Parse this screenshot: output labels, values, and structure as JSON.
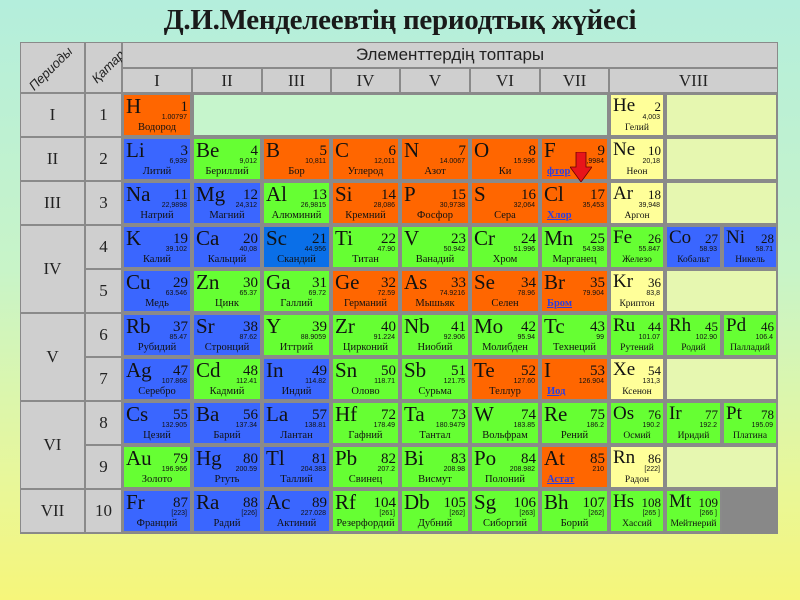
{
  "title": "Д.И.Менделеевтің периодтық жүйесі",
  "header": {
    "periods_label": "Периоды",
    "rows_label": "Қатар",
    "groups_title": "Элементтердің топтары",
    "groups": [
      "I",
      "II",
      "III",
      "IV",
      "V",
      "VI",
      "VII",
      "VIII"
    ]
  },
  "periods": [
    "I",
    "II",
    "III",
    "IV",
    "V",
    "VI",
    "VII"
  ],
  "series": [
    "1",
    "2",
    "3",
    "4",
    "5",
    "6",
    "7",
    "8",
    "9",
    "10"
  ],
  "colors": {
    "o": "#ff6600",
    "b": "#3a66ff",
    "db": "#0a6fe8",
    "g": "#66ff33",
    "y": "#ffff99",
    "empty_top": "#c6f5cc",
    "empty_side": "#e6f7b0"
  },
  "rows": [
    [
      {
        "s": "H",
        "n": "1",
        "m": "1.00797",
        "name": "Водород",
        "c": "o"
      },
      {
        "s": "He",
        "n": "2",
        "m": "4,003",
        "name": "Гелий",
        "c": "y"
      }
    ],
    [
      {
        "s": "Li",
        "n": "3",
        "m": "6,939",
        "name": "Литий",
        "c": "b"
      },
      {
        "s": "Be",
        "n": "4",
        "m": "9,012",
        "name": "Бериллий",
        "c": "g"
      },
      {
        "s": "B",
        "n": "5",
        "m": "10,811",
        "name": "Бор",
        "c": "o"
      },
      {
        "s": "C",
        "n": "6",
        "m": "12,011",
        "name": "Углерод",
        "c": "o"
      },
      {
        "s": "N",
        "n": "7",
        "m": "14.0067",
        "name": "Азот",
        "c": "o"
      },
      {
        "s": "O",
        "n": "8",
        "m": "15.996",
        "name": "Ки",
        "c": "o"
      },
      {
        "s": "F",
        "n": "9",
        "m": "18,9984",
        "name": "фтор",
        "c": "o",
        "link": true
      },
      {
        "s": "Ne",
        "n": "10",
        "m": "20,18",
        "name": "Неон",
        "c": "y"
      }
    ],
    [
      {
        "s": "Na",
        "n": "11",
        "m": "22,9898",
        "name": "Натрий",
        "c": "b"
      },
      {
        "s": "Mg",
        "n": "12",
        "m": "24,312",
        "name": "Магний",
        "c": "b"
      },
      {
        "s": "Al",
        "n": "13",
        "m": "26,9815",
        "name": "Алюминий",
        "c": "g"
      },
      {
        "s": "Si",
        "n": "14",
        "m": "28,086",
        "name": "Кремний",
        "c": "o"
      },
      {
        "s": "P",
        "n": "15",
        "m": "30,9738",
        "name": "Фосфор",
        "c": "o"
      },
      {
        "s": "S",
        "n": "16",
        "m": "32,064",
        "name": "Сера",
        "c": "o"
      },
      {
        "s": "Cl",
        "n": "17",
        "m": "35,453",
        "name": "Хлор",
        "c": "o",
        "link": true
      },
      {
        "s": "Ar",
        "n": "18",
        "m": "39,948",
        "name": "Аргон",
        "c": "y"
      }
    ],
    [
      {
        "s": "K",
        "n": "19",
        "m": "39.102",
        "name": "Калий",
        "c": "b"
      },
      {
        "s": "Ca",
        "n": "20",
        "m": "40,08",
        "name": "Кальций",
        "c": "b"
      },
      {
        "s": "Sc",
        "n": "21",
        "m": "44.956",
        "name": "Скандий",
        "c": "db"
      },
      {
        "s": "Ti",
        "n": "22",
        "m": "47.90",
        "name": "Титан",
        "c": "g"
      },
      {
        "s": "V",
        "n": "23",
        "m": "50.942",
        "name": "Ванадий",
        "c": "g"
      },
      {
        "s": "Cr",
        "n": "24",
        "m": "51.996",
        "name": "Хром",
        "c": "g"
      },
      {
        "s": "Mn",
        "n": "25",
        "m": "54.938",
        "name": "Марганец",
        "c": "g"
      },
      {
        "s": "Fe",
        "n": "26",
        "m": "55.847",
        "name": "Железо",
        "c": "g"
      },
      {
        "s": "Co",
        "n": "27",
        "m": "58.93",
        "name": "Кобальт",
        "c": "b"
      },
      {
        "s": "Ni",
        "n": "28",
        "m": "58.71",
        "name": "Никель",
        "c": "b"
      }
    ],
    [
      {
        "s": "Cu",
        "n": "29",
        "m": "63.546",
        "name": "Медь",
        "c": "b"
      },
      {
        "s": "Zn",
        "n": "30",
        "m": "65.37",
        "name": "Цинк",
        "c": "g"
      },
      {
        "s": "Ga",
        "n": "31",
        "m": "69.72",
        "name": "Галлий",
        "c": "g"
      },
      {
        "s": "Ge",
        "n": "32",
        "m": "72.59",
        "name": "Германий",
        "c": "o"
      },
      {
        "s": "As",
        "n": "33",
        "m": "74.9216",
        "name": "Мышьяк",
        "c": "o"
      },
      {
        "s": "Se",
        "n": "34",
        "m": "78.96",
        "name": "Селен",
        "c": "o"
      },
      {
        "s": "Br",
        "n": "35",
        "m": "79.904",
        "name": "Бром",
        "c": "o",
        "link": true
      },
      {
        "s": "Kr",
        "n": "36",
        "m": "83,8",
        "name": "Криптон",
        "c": "y"
      }
    ],
    [
      {
        "s": "Rb",
        "n": "37",
        "m": "85.47",
        "name": "Рубидий",
        "c": "b"
      },
      {
        "s": "Sr",
        "n": "38",
        "m": "87.62",
        "name": "Стронций",
        "c": "b"
      },
      {
        "s": "Y",
        "n": "39",
        "m": "88.9059",
        "name": "Иттрий",
        "c": "g"
      },
      {
        "s": "Zr",
        "n": "40",
        "m": "91.224",
        "name": "Цирконий",
        "c": "g"
      },
      {
        "s": "Nb",
        "n": "41",
        "m": "92.906",
        "name": "Ниобий",
        "c": "g"
      },
      {
        "s": "Mo",
        "n": "42",
        "m": "95.94",
        "name": "Молибден",
        "c": "g"
      },
      {
        "s": "Tc",
        "n": "43",
        "m": "99",
        "name": "Технеций",
        "c": "g"
      },
      {
        "s": "Ru",
        "n": "44",
        "m": "101.07",
        "name": "Рутений",
        "c": "g"
      },
      {
        "s": "Rh",
        "n": "45",
        "m": "102.90",
        "name": "Родий",
        "c": "g"
      },
      {
        "s": "Pd",
        "n": "46",
        "m": "106.4",
        "name": "Палладий",
        "c": "g"
      }
    ],
    [
      {
        "s": "Ag",
        "n": "47",
        "m": "107.868",
        "name": "Серебро",
        "c": "b"
      },
      {
        "s": "Cd",
        "n": "48",
        "m": "112.41",
        "name": "Кадмий",
        "c": "g"
      },
      {
        "s": "In",
        "n": "49",
        "m": "114.82",
        "name": "Индий",
        "c": "b"
      },
      {
        "s": "Sn",
        "n": "50",
        "m": "118.71",
        "name": "Олово",
        "c": "g"
      },
      {
        "s": "Sb",
        "n": "51",
        "m": "121.75",
        "name": "Сурьма",
        "c": "g"
      },
      {
        "s": "Te",
        "n": "52",
        "m": "127.60",
        "name": "Теллур",
        "c": "o"
      },
      {
        "s": "I",
        "n": "53",
        "m": "126.904",
        "name": "Иод",
        "c": "o",
        "link": true
      },
      {
        "s": "Xe",
        "n": "54",
        "m": "131,3",
        "name": "Ксенон",
        "c": "y"
      }
    ],
    [
      {
        "s": "Cs",
        "n": "55",
        "m": "132.905",
        "name": "Цезий",
        "c": "b"
      },
      {
        "s": "Ba",
        "n": "56",
        "m": "137.34",
        "name": "Барий",
        "c": "b"
      },
      {
        "s": "La",
        "n": "57",
        "m": "138.81",
        "name": "Лантан",
        "c": "b"
      },
      {
        "s": "Hf",
        "n": "72",
        "m": "178.49",
        "name": "Гафний",
        "c": "g"
      },
      {
        "s": "Ta",
        "n": "73",
        "m": "180.9479",
        "name": "Тантал",
        "c": "g"
      },
      {
        "s": "W",
        "n": "74",
        "m": "183.85",
        "name": "Вольфрам",
        "c": "g"
      },
      {
        "s": "Re",
        "n": "75",
        "m": "186.2",
        "name": "Рений",
        "c": "g"
      },
      {
        "s": "Os",
        "n": "76",
        "m": "190.2",
        "name": "Осмий",
        "c": "g"
      },
      {
        "s": "Ir",
        "n": "77",
        "m": "192.2",
        "name": "Иридий",
        "c": "g"
      },
      {
        "s": "Pt",
        "n": "78",
        "m": "195.09",
        "name": "Платина",
        "c": "g"
      }
    ],
    [
      {
        "s": "Au",
        "n": "79",
        "m": "196.966",
        "name": "Золото",
        "c": "g"
      },
      {
        "s": "Hg",
        "n": "80",
        "m": "200.59",
        "name": "Ртуть",
        "c": "b"
      },
      {
        "s": "Tl",
        "n": "81",
        "m": "204.383",
        "name": "Таллий",
        "c": "b"
      },
      {
        "s": "Pb",
        "n": "82",
        "m": "207.2",
        "name": "Свинец",
        "c": "g"
      },
      {
        "s": "Bi",
        "n": "83",
        "m": "208.98",
        "name": "Висмут",
        "c": "g"
      },
      {
        "s": "Po",
        "n": "84",
        "m": "208.982",
        "name": "Полоний",
        "c": "g"
      },
      {
        "s": "At",
        "n": "85",
        "m": "210",
        "name": "Астат",
        "c": "o",
        "link": true
      },
      {
        "s": "Rn",
        "n": "86",
        "m": "[222]",
        "name": "Радон",
        "c": "y"
      }
    ],
    [
      {
        "s": "Fr",
        "n": "87",
        "m": "[223]",
        "name": "Франций",
        "c": "b"
      },
      {
        "s": "Ra",
        "n": "88",
        "m": "[226]",
        "name": "Радий",
        "c": "b"
      },
      {
        "s": "Ac",
        "n": "89",
        "m": "227.028",
        "name": "Актиний",
        "c": "b"
      },
      {
        "s": "Rf",
        "n": "104",
        "m": "[261]",
        "name": "Резерфордий",
        "c": "g"
      },
      {
        "s": "Db",
        "n": "105",
        "m": "[262]",
        "name": "Дубний",
        "c": "g"
      },
      {
        "s": "Sg",
        "n": "106",
        "m": "[263]",
        "name": "Сиборгий",
        "c": "g"
      },
      {
        "s": "Bh",
        "n": "107",
        "m": "[262]",
        "name": "Борий",
        "c": "g"
      },
      {
        "s": "Hs",
        "n": "108",
        "m": "[265 ]",
        "name": "Хассий",
        "c": "g"
      },
      {
        "s": "Mt",
        "n": "109",
        "m": "[266 ]",
        "name": "Мейтнерий",
        "c": "g"
      }
    ]
  ]
}
